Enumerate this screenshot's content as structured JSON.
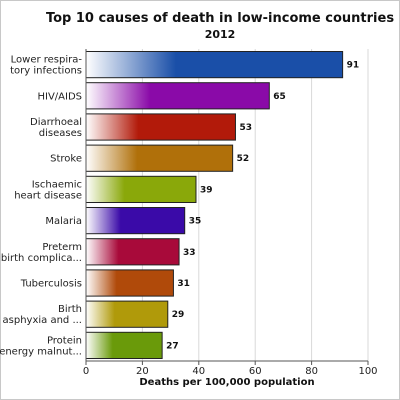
{
  "chart_data": {
    "type": "bar",
    "orientation": "horizontal",
    "title": "Top 10 causes of death in low-income countries",
    "subtitle": "2012",
    "xlabel": "Deaths per 100,000 population",
    "ylabel": "",
    "xlim": [
      0,
      100
    ],
    "xticks": [
      0,
      20,
      40,
      60,
      80,
      100
    ],
    "grid": true,
    "categories": [
      [
        "Lower respira-",
        "tory infections"
      ],
      [
        "HIV/AIDS"
      ],
      [
        "Diarrhoeal",
        "diseases"
      ],
      [
        "Stroke"
      ],
      [
        "Ischaemic",
        "heart disease"
      ],
      [
        "Malaria"
      ],
      [
        "Preterm",
        "birth complica..."
      ],
      [
        "Tuberculosis"
      ],
      [
        "Birth",
        "asphyxia and ..."
      ],
      [
        "Protein",
        "energy malnut..."
      ]
    ],
    "values": [
      91,
      65,
      53,
      52,
      39,
      35,
      33,
      31,
      29,
      27
    ],
    "colors": [
      "#1a4fa8",
      "#8a0aa8",
      "#b21a0a",
      "#b0700a",
      "#8aa80a",
      "#3a0aa8",
      "#a80a3a",
      "#b04a0a",
      "#b09a0a",
      "#6a9a0a"
    ]
  }
}
